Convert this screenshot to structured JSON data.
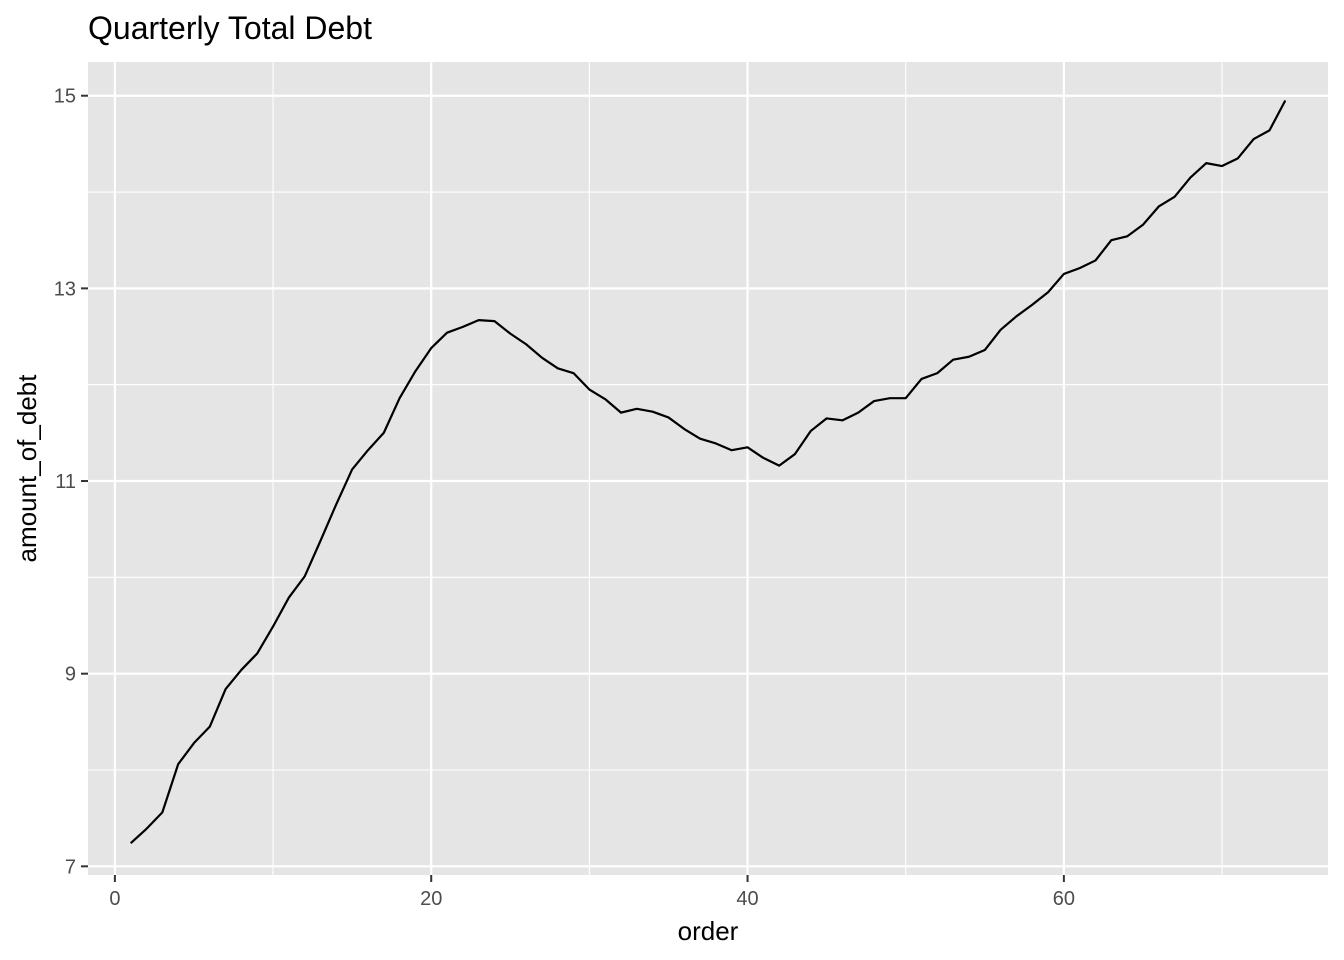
{
  "chart_data": {
    "type": "line",
    "title": "Quarterly Total Debt",
    "xlabel": "order",
    "ylabel": "amount_of_debt",
    "xlim": [
      -1.7,
      76.7
    ],
    "ylim": [
      6.91,
      15.35
    ],
    "x_ticks": [
      0,
      20,
      40,
      60
    ],
    "x_tick_labels": [
      "0",
      "20",
      "40",
      "60"
    ],
    "x_minor": [
      10,
      30,
      50,
      70
    ],
    "y_ticks": [
      7,
      9,
      11,
      13,
      15
    ],
    "y_tick_labels": [
      "7",
      "9",
      "11",
      "13",
      "15"
    ],
    "y_minor": [
      8,
      10,
      12,
      14
    ],
    "grid": true,
    "legend": "none",
    "colors": {
      "panel": "#e5e5e5",
      "grid": "#ffffff",
      "line": "#000000",
      "tick": "#333333"
    },
    "series": [
      {
        "x": [
          1,
          2,
          3,
          4,
          5,
          6,
          7,
          8,
          9,
          10,
          11,
          12,
          13,
          14,
          15,
          16,
          17,
          18,
          19,
          20,
          21,
          22,
          23,
          24,
          25,
          26,
          27,
          28,
          29,
          30,
          31,
          32,
          33,
          34,
          35,
          36,
          37,
          38,
          39,
          40,
          41,
          42,
          43,
          44,
          45,
          46,
          47,
          48,
          49,
          50,
          51,
          52,
          53,
          54,
          55,
          56,
          57,
          58,
          59,
          60,
          61,
          62,
          63,
          64,
          65,
          66,
          67,
          68,
          69,
          70,
          71,
          72,
          73,
          74
        ],
        "values": [
          7.24,
          7.39,
          7.56,
          8.06,
          8.28,
          8.45,
          8.84,
          9.04,
          9.21,
          9.49,
          9.79,
          10.01,
          10.38,
          10.76,
          11.12,
          11.32,
          11.5,
          11.86,
          12.14,
          12.38,
          12.54,
          12.6,
          12.67,
          12.66,
          12.53,
          12.42,
          12.28,
          12.17,
          12.12,
          11.95,
          11.85,
          11.71,
          11.75,
          11.72,
          11.66,
          11.54,
          11.44,
          11.39,
          11.32,
          11.35,
          11.24,
          11.16,
          11.28,
          11.52,
          11.65,
          11.63,
          11.71,
          11.83,
          11.86,
          11.86,
          12.06,
          12.12,
          12.26,
          12.29,
          12.36,
          12.57,
          12.71,
          12.83,
          12.96,
          13.15,
          13.21,
          13.29,
          13.5,
          13.54,
          13.66,
          13.85,
          13.95,
          14.15,
          14.3,
          14.27,
          14.35,
          14.55,
          14.64,
          14.95
        ]
      }
    ]
  }
}
